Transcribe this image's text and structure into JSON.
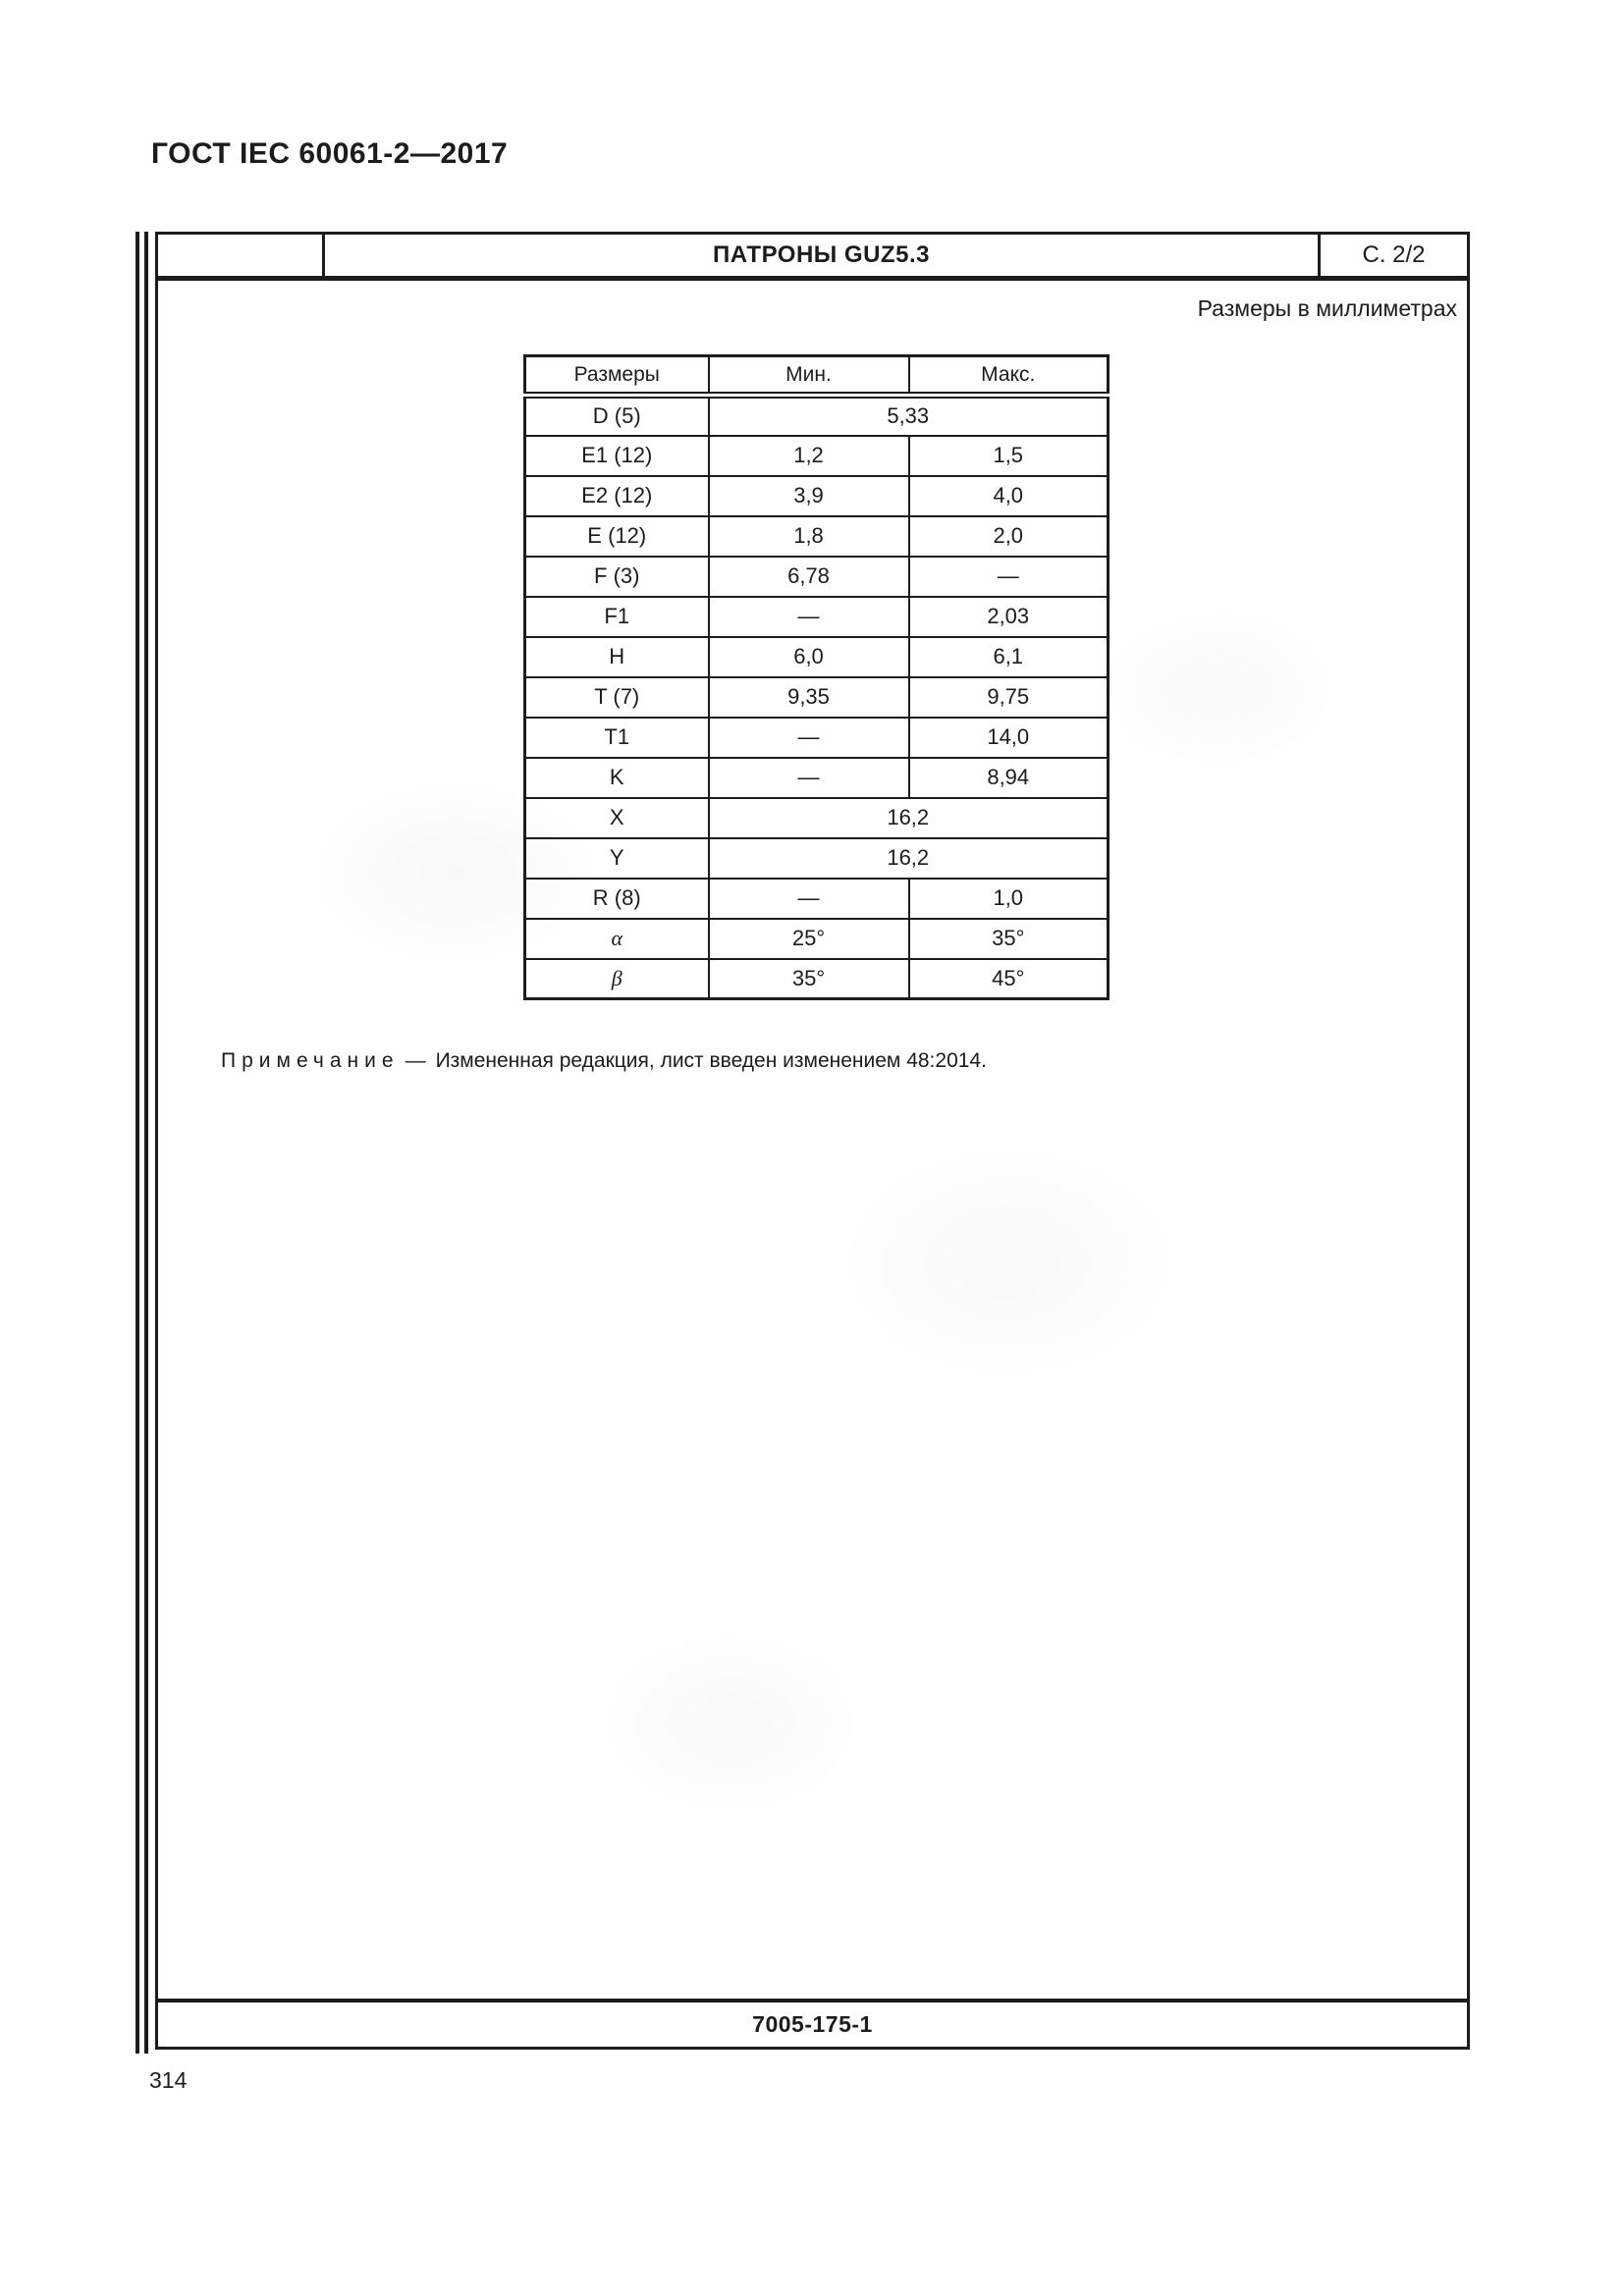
{
  "page": {
    "doc_header": "ГОСТ IEC 60061-2—2017",
    "page_number": "314"
  },
  "sheet": {
    "title": "ПАТРОНЫ GUZ5.3",
    "page_ref": "С. 2/2",
    "units_label": "Размеры в миллиметрах",
    "drawing_number": "7005-175-1"
  },
  "dim_table": {
    "col_headers": [
      "Размеры",
      "Мин.",
      "Макс."
    ],
    "rows": [
      {
        "name": "D (5)",
        "span": "5,33"
      },
      {
        "name": "E1 (12)",
        "min": "1,2",
        "max": "1,5"
      },
      {
        "name": "E2 (12)",
        "min": "3,9",
        "max": "4,0"
      },
      {
        "name": "E (12)",
        "min": "1,8",
        "max": "2,0"
      },
      {
        "name": "F (3)",
        "min": "6,78",
        "max": "—"
      },
      {
        "name": "F1",
        "min": "—",
        "max": "2,03"
      },
      {
        "name": "H",
        "min": "6,0",
        "max": "6,1"
      },
      {
        "name": "T (7)",
        "min": "9,35",
        "max": "9,75"
      },
      {
        "name": "T1",
        "min": "—",
        "max": "14,0"
      },
      {
        "name": "K",
        "min": "—",
        "max": "8,94"
      },
      {
        "name": "X",
        "span": "16,2"
      },
      {
        "name": "Y",
        "span": "16,2"
      },
      {
        "name": "R (8)",
        "min": "—",
        "max": "1,0"
      },
      {
        "name": "α",
        "min": "25°",
        "max": "35°"
      },
      {
        "name": "β",
        "min": "35°",
        "max": "45°"
      }
    ]
  },
  "note": {
    "label": "Примечание",
    "separator": "—",
    "text": "Измененная редакция, лист введен изменением 48:2014."
  },
  "colors": {
    "ink": "#1c1c1c",
    "paper": "#fefefe"
  }
}
